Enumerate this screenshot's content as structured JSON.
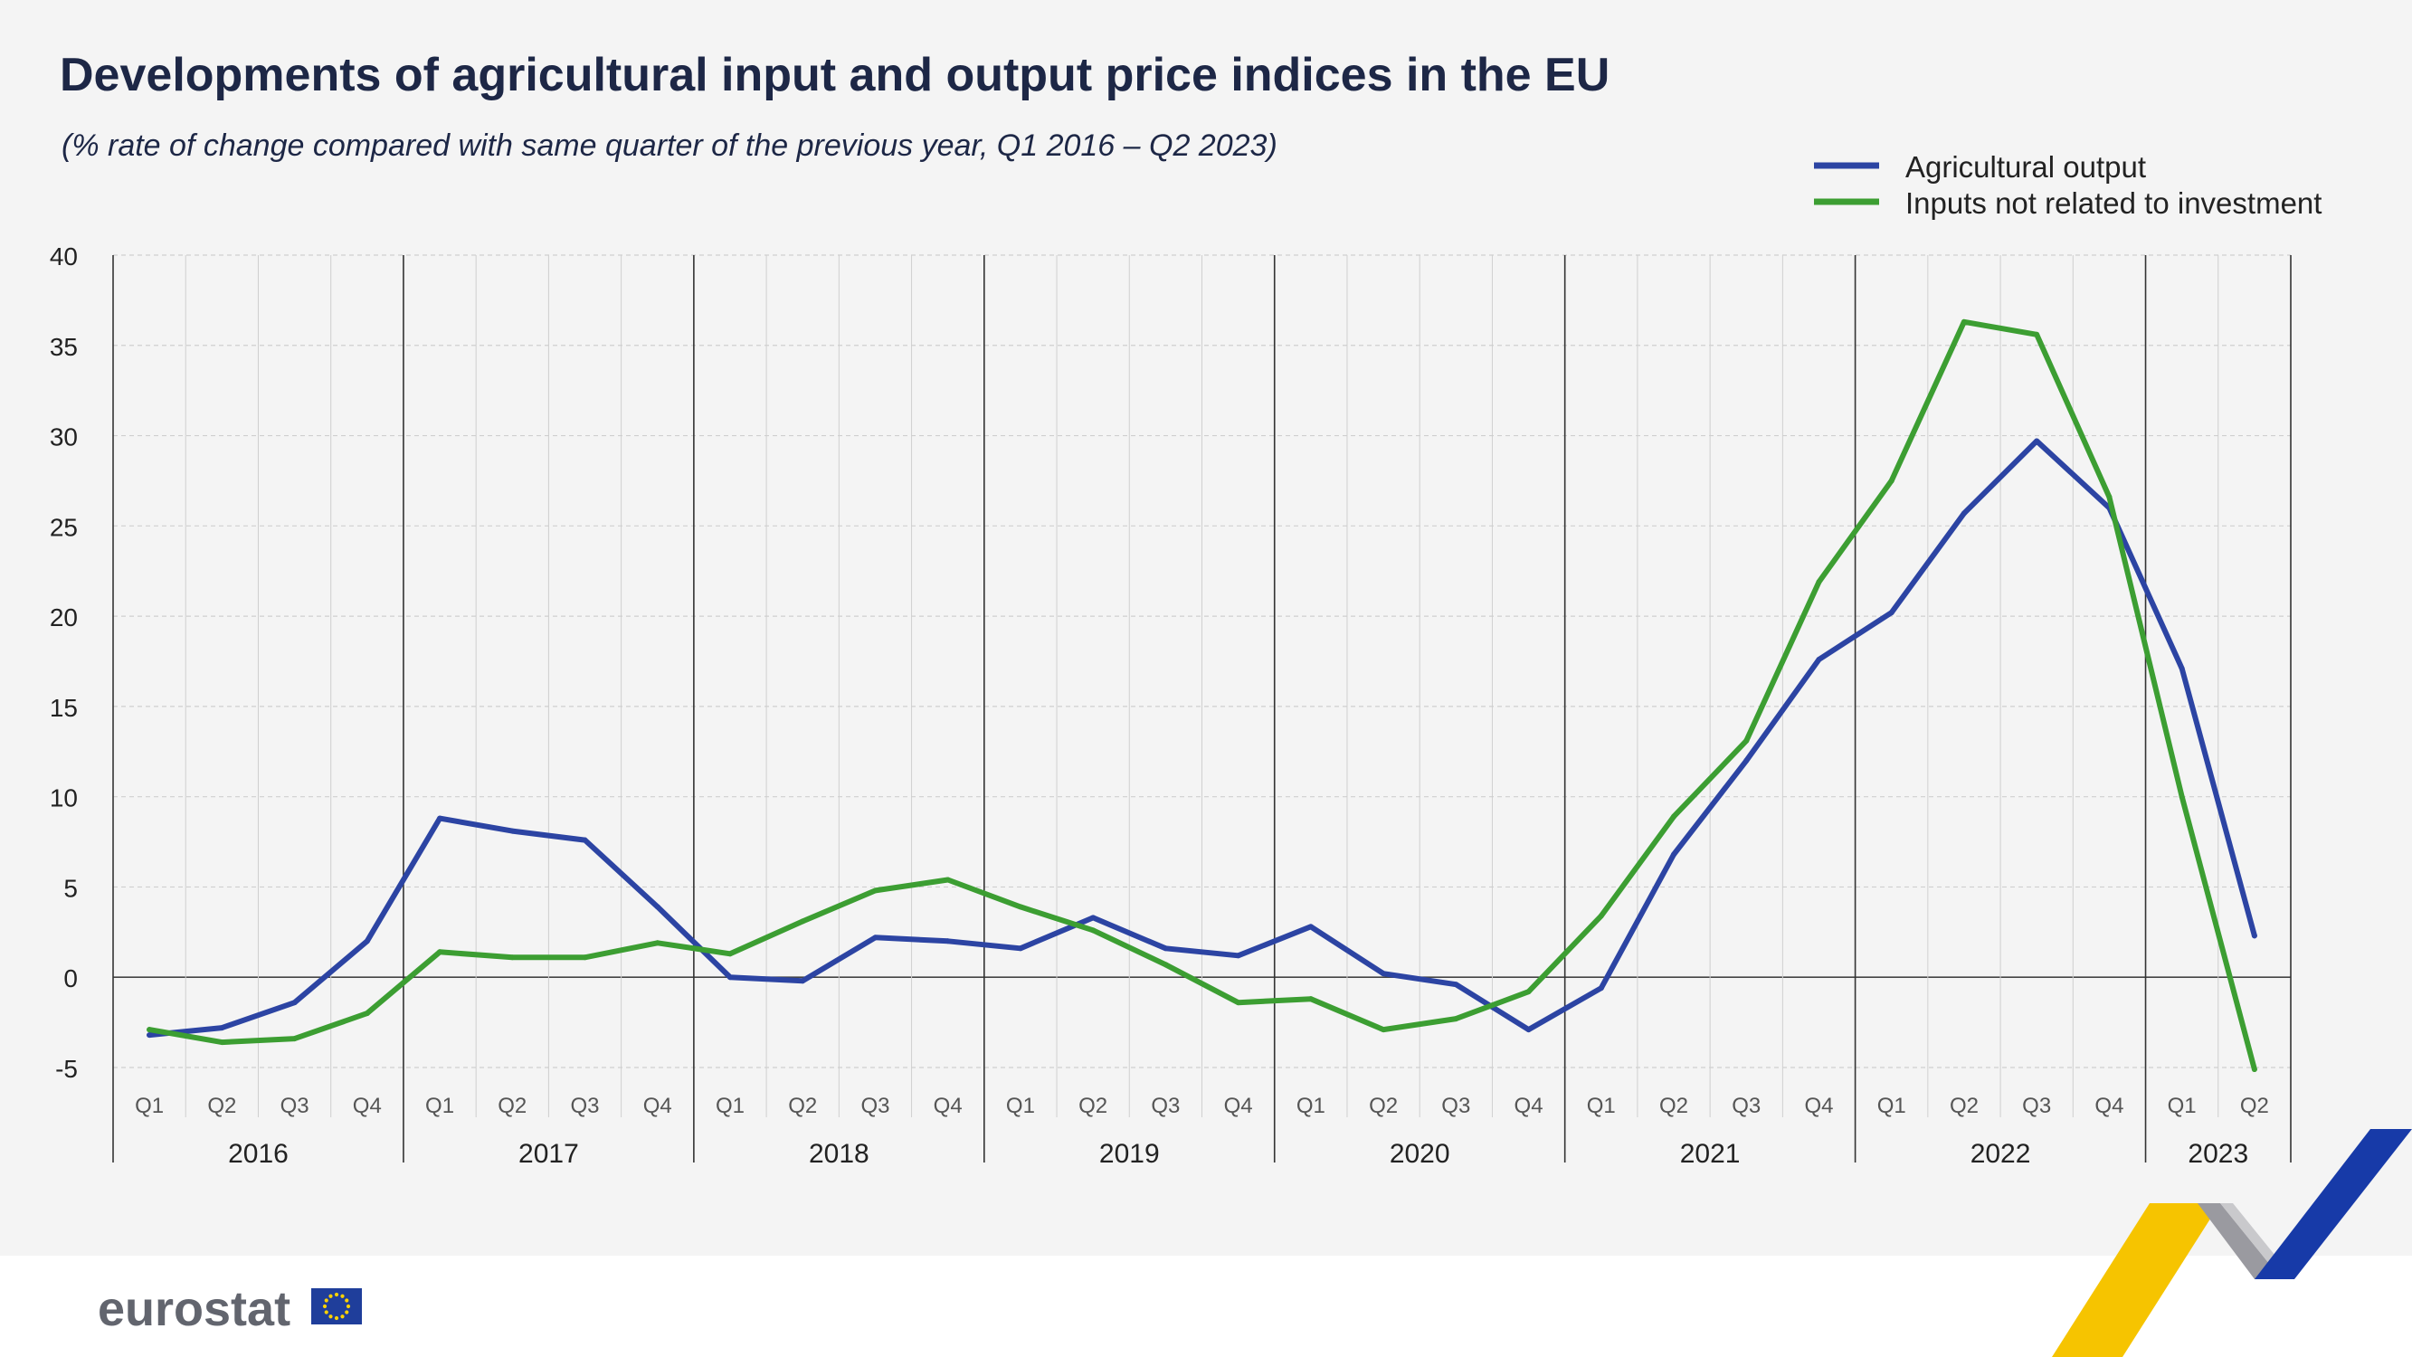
{
  "chart_data": {
    "type": "line",
    "title": "Developments of agricultural input and output price indices in the EU",
    "subtitle": "(% rate of change compared with same quarter of the previous year, Q1 2016 – Q2 2023)",
    "xlabel": "",
    "ylabel": "",
    "ylim": [
      -5,
      40
    ],
    "yticks": [
      "40",
      "35",
      "30",
      "25",
      "20",
      "15",
      "10",
      "5",
      "0",
      "-5"
    ],
    "ytick_values": [
      40,
      35,
      30,
      25,
      20,
      15,
      10,
      5,
      0,
      -5
    ],
    "years": [
      "2016",
      "2017",
      "2018",
      "2019",
      "2020",
      "2021",
      "2022",
      "2023"
    ],
    "quarter_labels": [
      "Q1",
      "Q2",
      "Q3",
      "Q4",
      "Q1",
      "Q2",
      "Q3",
      "Q4",
      "Q1",
      "Q2",
      "Q3",
      "Q4",
      "Q1",
      "Q2",
      "Q3",
      "Q4",
      "Q1",
      "Q2",
      "Q3",
      "Q4",
      "Q1",
      "Q2",
      "Q3",
      "Q4",
      "Q1",
      "Q2",
      "Q3",
      "Q4",
      "Q1",
      "Q2"
    ],
    "categories": [
      "Q1 2016",
      "Q2 2016",
      "Q3 2016",
      "Q4 2016",
      "Q1 2017",
      "Q2 2017",
      "Q3 2017",
      "Q4 2017",
      "Q1 2018",
      "Q2 2018",
      "Q3 2018",
      "Q4 2018",
      "Q1 2019",
      "Q2 2019",
      "Q3 2019",
      "Q4 2019",
      "Q1 2020",
      "Q2 2020",
      "Q3 2020",
      "Q4 2020",
      "Q1 2021",
      "Q2 2021",
      "Q3 2021",
      "Q4 2021",
      "Q1 2022",
      "Q2 2022",
      "Q3 2022",
      "Q4 2022",
      "Q1 2023",
      "Q2 2023"
    ],
    "grid": true,
    "legend_position": "top-right",
    "series": [
      {
        "name": "Agricultural output",
        "color": "#2c44a3",
        "values": [
          -3.2,
          -2.8,
          -1.4,
          2.0,
          8.8,
          8.1,
          7.6,
          3.9,
          0.0,
          -0.2,
          2.2,
          2.0,
          1.6,
          3.3,
          1.6,
          1.2,
          2.8,
          0.2,
          -0.4,
          -2.9,
          -0.6,
          6.8,
          12.0,
          17.6,
          20.2,
          25.7,
          29.7,
          26.0,
          17.1,
          2.3
        ]
      },
      {
        "name": "Inputs not related to investment",
        "color": "#3c9e32",
        "values": [
          -2.9,
          -3.6,
          -3.4,
          -2.0,
          1.4,
          1.1,
          1.1,
          1.9,
          1.3,
          3.1,
          4.8,
          5.4,
          3.9,
          2.6,
          0.7,
          -1.4,
          -1.2,
          -2.9,
          -2.3,
          -0.8,
          3.4,
          8.9,
          13.1,
          21.9,
          27.5,
          36.3,
          35.6,
          26.6,
          10.0,
          -5.1
        ]
      }
    ]
  },
  "colors": {
    "background": "#f4f4f4",
    "grid": "#cfcfcf",
    "zero_line": "#444444",
    "title": "#1d2746",
    "logo_text": "#62656e"
  },
  "logo": {
    "text": "eurostat",
    "icon": "eu-flag-icon"
  },
  "decoration": {
    "icon": "eurostat-chevron-graphic"
  }
}
